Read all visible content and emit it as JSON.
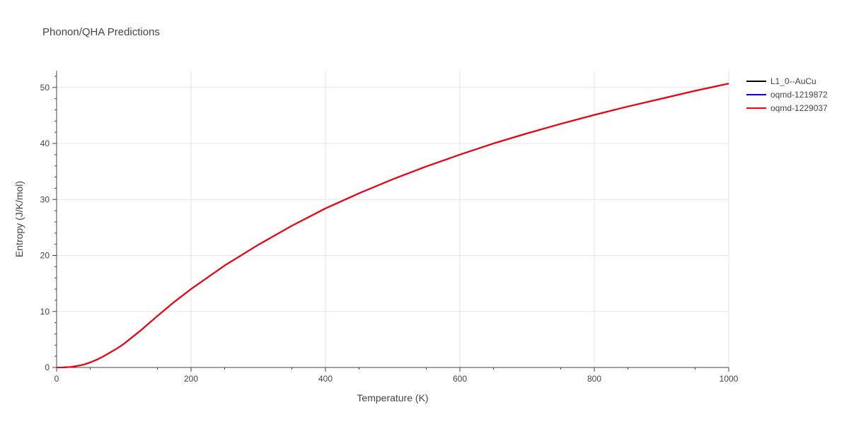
{
  "chart_data": {
    "type": "line",
    "title": "Phonon/QHA Predictions",
    "xlabel": "Temperature (K)",
    "ylabel": "Entropy (J/K/mol)",
    "xlim": [
      0,
      1000
    ],
    "ylim": [
      0,
      53
    ],
    "xticks": [
      0,
      200,
      400,
      600,
      800,
      1000
    ],
    "yticks": [
      0,
      10,
      20,
      30,
      40,
      50
    ],
    "grid": true,
    "legend_position": "top-right",
    "x": [
      0,
      10,
      20,
      30,
      40,
      50,
      60,
      70,
      80,
      90,
      100,
      125,
      150,
      175,
      200,
      250,
      300,
      350,
      400,
      450,
      500,
      550,
      600,
      650,
      700,
      750,
      800,
      850,
      900,
      950,
      1000
    ],
    "series": [
      {
        "name": "L1_0--AuCu",
        "color": "#000000",
        "values": [
          0,
          0.02,
          0.08,
          0.25,
          0.5,
          0.9,
          1.4,
          2.0,
          2.7,
          3.4,
          4.2,
          6.6,
          9.2,
          11.7,
          14.0,
          18.2,
          21.9,
          25.3,
          28.4,
          31.1,
          33.6,
          35.9,
          38.0,
          40.0,
          41.8,
          43.5,
          45.1,
          46.6,
          48.0,
          49.4,
          50.7
        ]
      },
      {
        "name": "oqmd-1219872",
        "color": "#0000ff",
        "values": [
          0,
          0.02,
          0.08,
          0.25,
          0.5,
          0.9,
          1.4,
          2.0,
          2.7,
          3.4,
          4.2,
          6.6,
          9.2,
          11.7,
          14.0,
          18.2,
          21.9,
          25.3,
          28.4,
          31.1,
          33.6,
          35.9,
          38.0,
          40.0,
          41.8,
          43.5,
          45.1,
          46.6,
          48.0,
          49.4,
          50.7
        ]
      },
      {
        "name": "oqmd-1229037",
        "color": "#ff0000",
        "values": [
          0,
          0.02,
          0.08,
          0.25,
          0.5,
          0.9,
          1.4,
          2.0,
          2.7,
          3.4,
          4.2,
          6.6,
          9.2,
          11.7,
          14.0,
          18.2,
          21.9,
          25.3,
          28.4,
          31.1,
          33.6,
          35.9,
          38.0,
          40.0,
          41.8,
          43.5,
          45.1,
          46.6,
          48.0,
          49.4,
          50.7
        ]
      }
    ]
  }
}
